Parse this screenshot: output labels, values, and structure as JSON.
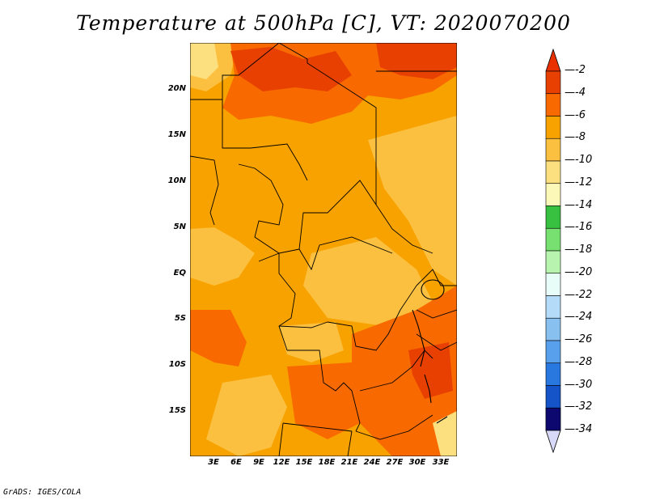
{
  "title": "Temperature at 500hPa [C], VT: 2020070200",
  "credit": "GrADS: IGES/COLA",
  "map": {
    "lon_range": [
      0,
      35
    ],
    "lat_range": [
      -20,
      24
    ],
    "x_ticks": [
      "3E",
      "6E",
      "9E",
      "12E",
      "15E",
      "18E",
      "21E",
      "24E",
      "27E",
      "30E",
      "33E"
    ],
    "y_ticks": [
      "20N",
      "15N",
      "10N",
      "5N",
      "EQ",
      "5S",
      "10S",
      "15S"
    ]
  },
  "colorbar": {
    "labels": [
      "-2",
      "-4",
      "-6",
      "-8",
      "-10",
      "-12",
      "-14",
      "-16",
      "-18",
      "-20",
      "-22",
      "-24",
      "-26",
      "-28",
      "-30",
      "-32",
      "-34"
    ],
    "colors": [
      "#e84000",
      "#f86a00",
      "#f8a200",
      "#fcc040",
      "#fce080",
      "#fcf8b8",
      "#38c040",
      "#78e070",
      "#b8f4b0",
      "#e8fcf8",
      "#b4dcf8",
      "#88c0f0",
      "#58a0ec",
      "#2878e0",
      "#1454c8",
      "#0028a0",
      "#0c0870"
    ],
    "arrow_top_color": "#e83000",
    "arrow_bottom_color": "#d8d8f8"
  }
}
